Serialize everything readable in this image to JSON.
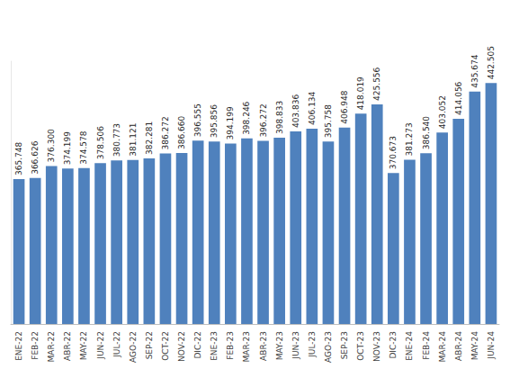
{
  "chart_data": {
    "type": "bar",
    "categories": [
      "ENE-22",
      "FEB-22",
      "MAR-22",
      "ABR-22",
      "MAY-22",
      "JUN-22",
      "JUL-22",
      "AGO-22",
      "SEP-22",
      "OCT-22",
      "NOV-22",
      "DIC-22",
      "ENE-23",
      "FEB-23",
      "MAR-23",
      "ABR-23",
      "MAY-23",
      "JUN-23",
      "JUL-23",
      "AGO-23",
      "SEP-23",
      "OCT-23",
      "NOV-23",
      "DIC-23",
      "ENE-24",
      "FEB-24",
      "MAR-24",
      "ABR-24",
      "MAY-24",
      "JUN-24"
    ],
    "values": [
      365.748,
      366.626,
      376.3,
      374.199,
      374.578,
      378.506,
      380.773,
      381.121,
      382.281,
      386.272,
      386.66,
      396.555,
      395.856,
      394.199,
      398.246,
      396.272,
      398.833,
      403.836,
      406.134,
      395.758,
      406.948,
      418.019,
      425.556,
      370.673,
      381.273,
      386.54,
      403.052,
      414.056,
      435.674,
      442.505
    ],
    "value_labels": [
      "365.748",
      "366.626",
      "376.300",
      "374.199",
      "374.578",
      "378.506",
      "380.773",
      "381.121",
      "382.281",
      "386.272",
      "386.660",
      "396.555",
      "395.856",
      "394.199",
      "398.246",
      "396.272",
      "398.833",
      "403.836",
      "406.134",
      "395.758",
      "406.948",
      "418.019",
      "425.556",
      "370.673",
      "381.273",
      "386.540",
      "403.052",
      "414.056",
      "435.674",
      "442.505"
    ],
    "color": "#4f81bd",
    "ylim": [
      250,
      460
    ],
    "grid": false,
    "data_labels": true,
    "tick_labels": "x"
  }
}
